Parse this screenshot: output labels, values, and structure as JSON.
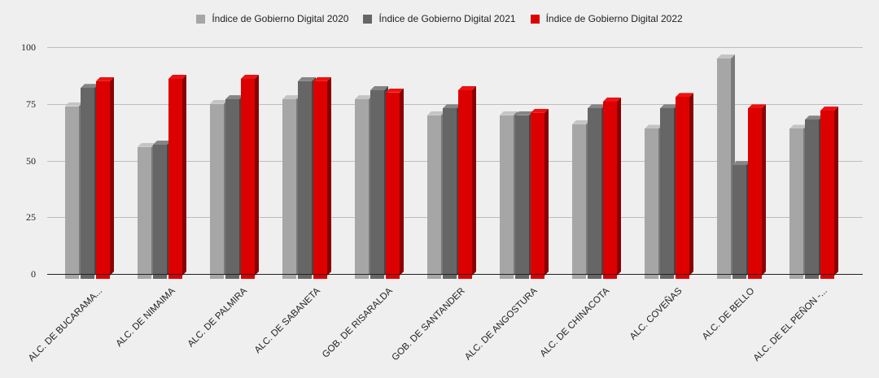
{
  "chart_data": {
    "type": "bar",
    "title": "",
    "xlabel": "",
    "ylabel": "",
    "ylim": [
      0,
      100
    ],
    "yticks": [
      "0",
      "25",
      "50",
      "75",
      "100"
    ],
    "grid": true,
    "legend_position": "top",
    "categories": [
      "ALC. DE BUCARAMA...",
      "ALC. DE NIMAIMA",
      "ALC. DE PALMIRA",
      "ALC. DE SABANETA",
      "GOB. DE RISARALDA",
      "GOB. DE SANTANDER",
      "ALC. DE ANGOSTURA",
      "ALC. DE CHINACOTA",
      "ALC. COVEÑAS",
      "ALC. DE BELLO",
      "ALC. DE EL PEÑON -..."
    ],
    "series": [
      {
        "name": "Índice de Gobierno Digital 2020",
        "color": "#a6a6a6",
        "values": [
          74,
          56,
          75,
          77,
          77,
          70,
          70,
          66,
          64,
          95,
          64
        ]
      },
      {
        "name": "Índice de Gobierno Digital 2021",
        "color": "#666666",
        "values": [
          82,
          57,
          77,
          85,
          81,
          73,
          70,
          73,
          73,
          48,
          68
        ]
      },
      {
        "name": "Índice de Gobierno Digital 2022",
        "color": "#dd0000",
        "values": [
          85,
          86,
          86,
          85,
          80,
          81,
          71,
          76,
          78,
          73,
          72
        ]
      }
    ]
  },
  "legend": [
    {
      "label": "Índice de Gobierno Digital 2020",
      "color": "#a6a6a6"
    },
    {
      "label": "Índice de Gobierno Digital 2021",
      "color": "#666666"
    },
    {
      "label": "Índice de Gobierno Digital 2022",
      "color": "#dd0000"
    }
  ]
}
